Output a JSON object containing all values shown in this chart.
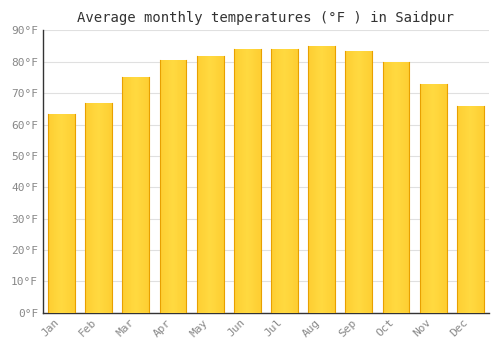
{
  "months": [
    "Jan",
    "Feb",
    "Mar",
    "Apr",
    "May",
    "Jun",
    "Jul",
    "Aug",
    "Sep",
    "Oct",
    "Nov",
    "Dec"
  ],
  "values": [
    63.5,
    67.0,
    75.0,
    80.5,
    82.0,
    84.0,
    84.0,
    85.0,
    83.5,
    80.0,
    73.0,
    66.0
  ],
  "bar_color_main": "#FBB917",
  "bar_color_light": "#FFCF40",
  "bar_color_dark": "#E8A000",
  "background_color": "#ffffff",
  "plot_bg_color": "#ffffff",
  "grid_color": "#e0e0e0",
  "title": "Average monthly temperatures (°F ) in Saidpur",
  "ylabel_ticks": [
    "0°F",
    "10°F",
    "20°F",
    "30°F",
    "40°F",
    "50°F",
    "60°F",
    "70°F",
    "80°F",
    "90°F"
  ],
  "ytick_values": [
    0,
    10,
    20,
    30,
    40,
    50,
    60,
    70,
    80,
    90
  ],
  "ylim": [
    0,
    90
  ],
  "title_fontsize": 10,
  "tick_fontsize": 8,
  "tick_color": "#888888",
  "axis_color": "#333333",
  "left_spine_color": "#333333"
}
